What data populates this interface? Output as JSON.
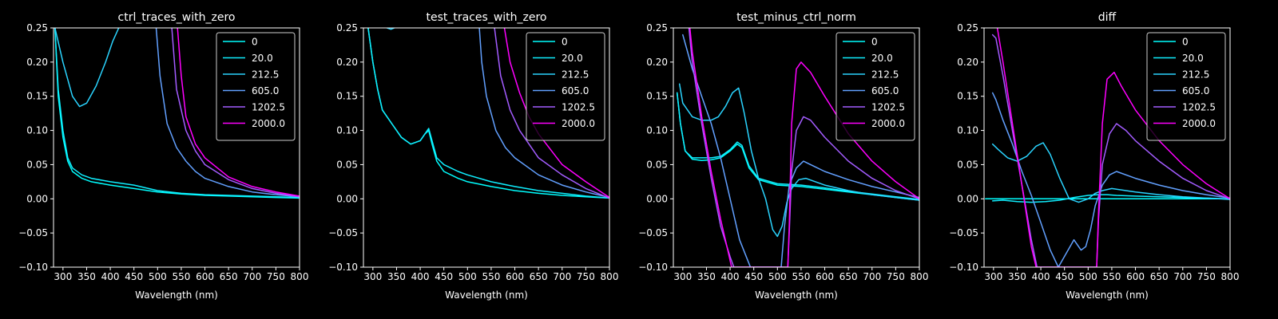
{
  "figure": {
    "background": "#000000",
    "foreground": "#ffffff"
  },
  "chart_data": [
    {
      "type": "line",
      "title": "ctrl_traces_with_zero",
      "xlabel": "Wavelength (nm)",
      "ylabel": "",
      "xlim": [
        280,
        800
      ],
      "ylim": [
        -0.1,
        0.25
      ],
      "xticks": [
        300,
        350,
        400,
        450,
        500,
        550,
        600,
        650,
        700,
        750,
        800
      ],
      "yticks": [
        -0.1,
        -0.05,
        0.0,
        0.05,
        0.1,
        0.15,
        0.2,
        0.25
      ],
      "ytick_labels": [
        "−0.10",
        "−0.05",
        "0.00",
        "0.05",
        "0.10",
        "0.15",
        "0.20",
        "0.25"
      ],
      "legend": "top-right",
      "series": [
        {
          "name": "0",
          "color": "#00ffff",
          "x": [
            283,
            290,
            300,
            310,
            320,
            340,
            360,
            400,
            450,
            500,
            550,
            600,
            650,
            700,
            750,
            800
          ],
          "y": [
            0.25,
            0.15,
            0.09,
            0.055,
            0.04,
            0.03,
            0.025,
            0.02,
            0.015,
            0.01,
            0.007,
            0.005,
            0.004,
            0.003,
            0.002,
            0.001
          ]
        },
        {
          "name": "20.0",
          "color": "#0fefff",
          "x": [
            283,
            290,
            300,
            310,
            320,
            340,
            360,
            400,
            450,
            500,
            550,
            600,
            650,
            700,
            750,
            800
          ],
          "y": [
            0.25,
            0.16,
            0.1,
            0.06,
            0.045,
            0.035,
            0.03,
            0.025,
            0.02,
            0.012,
            0.008,
            0.006,
            0.005,
            0.004,
            0.003,
            0.002
          ]
        },
        {
          "name": "212.5",
          "color": "#2ad4ff",
          "x": [
            283,
            300,
            320,
            335,
            350,
            370,
            390,
            405,
            418
          ],
          "y": [
            0.25,
            0.2,
            0.15,
            0.135,
            0.14,
            0.165,
            0.2,
            0.23,
            0.25
          ]
        },
        {
          "name": "605.0",
          "color": "#62a0ff",
          "x": [
            497,
            505,
            520,
            540,
            560,
            580,
            600,
            650,
            700,
            750,
            800
          ],
          "y": [
            0.25,
            0.18,
            0.11,
            0.075,
            0.055,
            0.04,
            0.03,
            0.018,
            0.01,
            0.006,
            0.003
          ]
        },
        {
          "name": "1202.5",
          "color": "#a35cff",
          "x": [
            530,
            540,
            560,
            580,
            600,
            650,
            700,
            750,
            800
          ],
          "y": [
            0.25,
            0.16,
            0.1,
            0.07,
            0.05,
            0.028,
            0.015,
            0.008,
            0.003
          ]
        },
        {
          "name": "2000.0",
          "color": "#ff00ff",
          "x": [
            542,
            550,
            560,
            580,
            600,
            650,
            700,
            750,
            800
          ],
          "y": [
            0.25,
            0.18,
            0.12,
            0.08,
            0.06,
            0.032,
            0.018,
            0.01,
            0.004
          ]
        }
      ]
    },
    {
      "type": "line",
      "title": "test_traces_with_zero",
      "xlabel": "Wavelength (nm)",
      "ylabel": "",
      "xlim": [
        280,
        800
      ],
      "ylim": [
        -0.1,
        0.25
      ],
      "xticks": [
        300,
        350,
        400,
        450,
        500,
        550,
        600,
        650,
        700,
        750,
        800
      ],
      "yticks": [
        -0.1,
        -0.05,
        0.0,
        0.05,
        0.1,
        0.15,
        0.2,
        0.25
      ],
      "ytick_labels": [
        "−0.10",
        "−0.05",
        "0.00",
        "0.05",
        "0.10",
        "0.15",
        "0.20",
        "0.25"
      ],
      "legend": "top-right",
      "series": [
        {
          "name": "0",
          "color": "#00ffff",
          "x": [
            290,
            300,
            310,
            320,
            340,
            360,
            380,
            400,
            410,
            418,
            425,
            435,
            450,
            480,
            500,
            550,
            600,
            650,
            700,
            750,
            800
          ],
          "y": [
            0.25,
            0.2,
            0.16,
            0.13,
            0.11,
            0.09,
            0.08,
            0.085,
            0.095,
            0.1,
            0.08,
            0.055,
            0.04,
            0.03,
            0.025,
            0.018,
            0.012,
            0.008,
            0.005,
            0.003,
            0.001
          ]
        },
        {
          "name": "20.0",
          "color": "#0fefff",
          "x": [
            290,
            300,
            310,
            320,
            340,
            360,
            380,
            400,
            410,
            418,
            425,
            435,
            450,
            480,
            500,
            550,
            600,
            650,
            700,
            750,
            800
          ],
          "y": [
            0.25,
            0.2,
            0.16,
            0.13,
            0.11,
            0.09,
            0.08,
            0.085,
            0.095,
            0.103,
            0.085,
            0.06,
            0.05,
            0.04,
            0.035,
            0.025,
            0.018,
            0.012,
            0.008,
            0.004,
            0.001
          ]
        },
        {
          "name": "212.5",
          "color": "#2ad4ff",
          "x": [
            330,
            338,
            345
          ],
          "y": [
            0.25,
            0.248,
            0.25
          ]
        },
        {
          "name": "605.0",
          "color": "#62a0ff",
          "x": [
            525,
            530,
            540,
            560,
            580,
            600,
            650,
            700,
            750,
            800
          ],
          "y": [
            0.25,
            0.2,
            0.15,
            0.1,
            0.075,
            0.06,
            0.035,
            0.02,
            0.01,
            0.002
          ]
        },
        {
          "name": "1202.5",
          "color": "#a35cff",
          "x": [
            557,
            570,
            590,
            610,
            650,
            700,
            750,
            800
          ],
          "y": [
            0.25,
            0.18,
            0.13,
            0.1,
            0.06,
            0.035,
            0.015,
            0.001
          ]
        },
        {
          "name": "2000.0",
          "color": "#ff00ff",
          "x": [
            578,
            590,
            610,
            630,
            650,
            700,
            750,
            800
          ],
          "y": [
            0.25,
            0.2,
            0.155,
            0.12,
            0.095,
            0.05,
            0.025,
            0.002
          ]
        }
      ]
    },
    {
      "type": "line",
      "title": "test_minus_ctrl_norm",
      "xlabel": "Wavelength (nm)",
      "ylabel": "",
      "xlim": [
        280,
        800
      ],
      "ylim": [
        -0.1,
        0.25
      ],
      "xticks": [
        300,
        350,
        400,
        450,
        500,
        550,
        600,
        650,
        700,
        750,
        800
      ],
      "yticks": [
        -0.1,
        -0.05,
        0.0,
        0.05,
        0.1,
        0.15,
        0.2,
        0.25
      ],
      "ytick_labels": [
        "−0.10",
        "−0.05",
        "0.00",
        "0.05",
        "0.10",
        "0.15",
        "0.20",
        "0.25"
      ],
      "legend": "top-right",
      "series": [
        {
          "name": "0",
          "color": "#00ffff",
          "x": [
            288,
            295,
            305,
            320,
            340,
            360,
            380,
            400,
            415,
            425,
            440,
            460,
            500,
            550,
            600,
            650,
            700,
            750,
            800
          ],
          "y": [
            0.155,
            0.11,
            0.07,
            0.058,
            0.056,
            0.057,
            0.06,
            0.07,
            0.08,
            0.075,
            0.045,
            0.028,
            0.02,
            0.018,
            0.014,
            0.01,
            0.006,
            0.002,
            -0.002
          ]
        },
        {
          "name": "20.0",
          "color": "#0fefff",
          "x": [
            288,
            295,
            305,
            320,
            340,
            360,
            380,
            400,
            415,
            425,
            440,
            460,
            500,
            550,
            600,
            650,
            700,
            750,
            800
          ],
          "y": [
            0.155,
            0.11,
            0.07,
            0.06,
            0.06,
            0.06,
            0.062,
            0.072,
            0.083,
            0.078,
            0.048,
            0.03,
            0.022,
            0.02,
            0.016,
            0.011,
            0.007,
            0.003,
            -0.001
          ]
        },
        {
          "name": "212.5",
          "color": "#2ad4ff",
          "x": [
            293,
            300,
            320,
            340,
            360,
            375,
            390,
            405,
            418,
            430,
            445,
            460,
            475,
            490,
            500,
            510,
            520,
            530,
            545,
            560,
            600,
            650,
            700,
            750,
            800
          ],
          "y": [
            0.168,
            0.14,
            0.12,
            0.115,
            0.115,
            0.12,
            0.135,
            0.155,
            0.162,
            0.125,
            0.07,
            0.03,
            0.0,
            -0.045,
            -0.055,
            -0.04,
            -0.005,
            0.015,
            0.028,
            0.03,
            0.02,
            0.012,
            0.006,
            0.002,
            -0.002
          ]
        },
        {
          "name": "605.0",
          "color": "#62a0ff",
          "x": [
            300,
            310,
            320,
            340,
            360,
            380,
            400,
            420,
            440,
            443,
            508,
            515,
            525,
            540,
            555,
            570,
            600,
            650,
            700,
            750,
            800
          ],
          "y": [
            0.24,
            0.215,
            0.19,
            0.15,
            0.11,
            0.06,
            0.0,
            -0.06,
            -0.095,
            -0.1,
            -0.1,
            -0.04,
            0.02,
            0.045,
            0.055,
            0.05,
            0.04,
            0.028,
            0.018,
            0.01,
            0.002
          ]
        },
        {
          "name": "1202.5",
          "color": "#a35cff",
          "x": [
            313,
            320,
            340,
            360,
            380,
            400,
            408,
            522,
            525,
            530,
            540,
            555,
            570,
            600,
            650,
            700,
            750,
            800
          ],
          "y": [
            0.25,
            0.2,
            0.11,
            0.03,
            -0.04,
            -0.085,
            -0.1,
            -0.1,
            -0.05,
            0.04,
            0.1,
            0.12,
            0.115,
            0.09,
            0.055,
            0.03,
            0.012,
            0.0
          ]
        },
        {
          "name": "2000.0",
          "color": "#ff00ff",
          "x": [
            315,
            320,
            340,
            360,
            380,
            395,
            403,
            522,
            525,
            530,
            540,
            550,
            570,
            600,
            650,
            700,
            750,
            800
          ],
          "y": [
            0.25,
            0.215,
            0.12,
            0.04,
            -0.03,
            -0.075,
            -0.1,
            -0.1,
            -0.04,
            0.11,
            0.19,
            0.2,
            0.185,
            0.15,
            0.095,
            0.055,
            0.025,
            0.0
          ]
        }
      ]
    },
    {
      "type": "line",
      "title": "diff",
      "xlabel": "Wavelength (nm)",
      "ylabel": "",
      "xlim": [
        280,
        800
      ],
      "ylim": [
        -0.1,
        0.25
      ],
      "xticks": [
        300,
        350,
        400,
        450,
        500,
        550,
        600,
        650,
        700,
        750,
        800
      ],
      "yticks": [
        -0.1,
        -0.05,
        0.0,
        0.05,
        0.1,
        0.15,
        0.2,
        0.25
      ],
      "ytick_labels": [
        "−0.10",
        "−0.05",
        "0.00",
        "0.05",
        "0.10",
        "0.15",
        "0.20",
        "0.25"
      ],
      "legend": "top-right",
      "series": [
        {
          "name": "0",
          "color": "#00ffff",
          "x": [
            283,
            800
          ],
          "y": [
            0.0,
            0.0
          ]
        },
        {
          "name": "20.0",
          "color": "#0fefff",
          "x": [
            298,
            320,
            350,
            380,
            410,
            440,
            470,
            500,
            520,
            540,
            560,
            600,
            650,
            700,
            750,
            800
          ],
          "y": [
            -0.003,
            -0.002,
            -0.004,
            -0.005,
            -0.004,
            -0.002,
            0.002,
            0.005,
            0.006,
            0.006,
            0.005,
            0.004,
            0.003,
            0.002,
            0.001,
            0.0
          ]
        },
        {
          "name": "212.5",
          "color": "#2ad4ff",
          "x": [
            298,
            310,
            330,
            350,
            370,
            390,
            405,
            420,
            440,
            460,
            480,
            500,
            515,
            530,
            550,
            600,
            650,
            700,
            750,
            800
          ],
          "y": [
            0.08,
            0.072,
            0.06,
            0.055,
            0.062,
            0.077,
            0.082,
            0.065,
            0.03,
            0.0,
            -0.005,
            0.0,
            0.008,
            0.012,
            0.015,
            0.01,
            0.006,
            0.003,
            0.001,
            -0.001
          ]
        },
        {
          "name": "605.0",
          "color": "#62a0ff",
          "x": [
            298,
            305,
            320,
            340,
            360,
            380,
            400,
            420,
            437,
            470,
            485,
            495,
            505,
            515,
            530,
            545,
            560,
            600,
            650,
            700,
            750,
            800
          ],
          "y": [
            0.155,
            0.145,
            0.115,
            0.08,
            0.04,
            0.005,
            -0.035,
            -0.075,
            -0.1,
            -0.06,
            -0.075,
            -0.07,
            -0.045,
            -0.01,
            0.02,
            0.035,
            0.04,
            0.03,
            0.02,
            0.012,
            0.006,
            0.001
          ]
        },
        {
          "name": "1202.5",
          "color": "#a35cff",
          "x": [
            298,
            305,
            320,
            340,
            360,
            380,
            392,
            518,
            522,
            530,
            545,
            560,
            580,
            600,
            650,
            700,
            750,
            800
          ],
          "y": [
            0.24,
            0.235,
            0.18,
            0.1,
            0.02,
            -0.06,
            -0.1,
            -0.1,
            -0.03,
            0.05,
            0.095,
            0.11,
            0.1,
            0.085,
            0.055,
            0.03,
            0.012,
            0.0
          ]
        },
        {
          "name": "2000.0",
          "color": "#ff00ff",
          "x": [
            308,
            320,
            340,
            360,
            380,
            390,
            518,
            522,
            530,
            540,
            555,
            570,
            600,
            650,
            700,
            750,
            800
          ],
          "y": [
            0.25,
            0.2,
            0.11,
            0.02,
            -0.07,
            -0.1,
            -0.1,
            -0.02,
            0.11,
            0.175,
            0.185,
            0.165,
            0.13,
            0.085,
            0.05,
            0.022,
            0.0
          ]
        }
      ]
    }
  ]
}
